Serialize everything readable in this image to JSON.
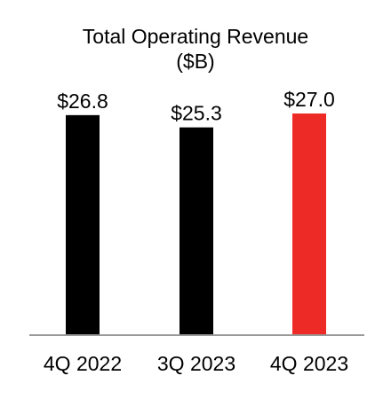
{
  "chart_data": {
    "type": "bar",
    "title": "Total Operating Revenue",
    "subtitle": "($B)",
    "categories": [
      "4Q 2022",
      "3Q 2023",
      "4Q 2023"
    ],
    "values": [
      26.8,
      25.3,
      27.0
    ],
    "data_labels": [
      "$26.8",
      "$25.3",
      "$27.0"
    ],
    "bar_colors": [
      "#000000",
      "#000000",
      "#ee2a27"
    ],
    "axis_color": "#999999",
    "text_color": "#000000",
    "xlabel": "",
    "ylabel": "",
    "ylim": [
      0,
      27.0
    ],
    "grid": false,
    "legend": "none"
  }
}
